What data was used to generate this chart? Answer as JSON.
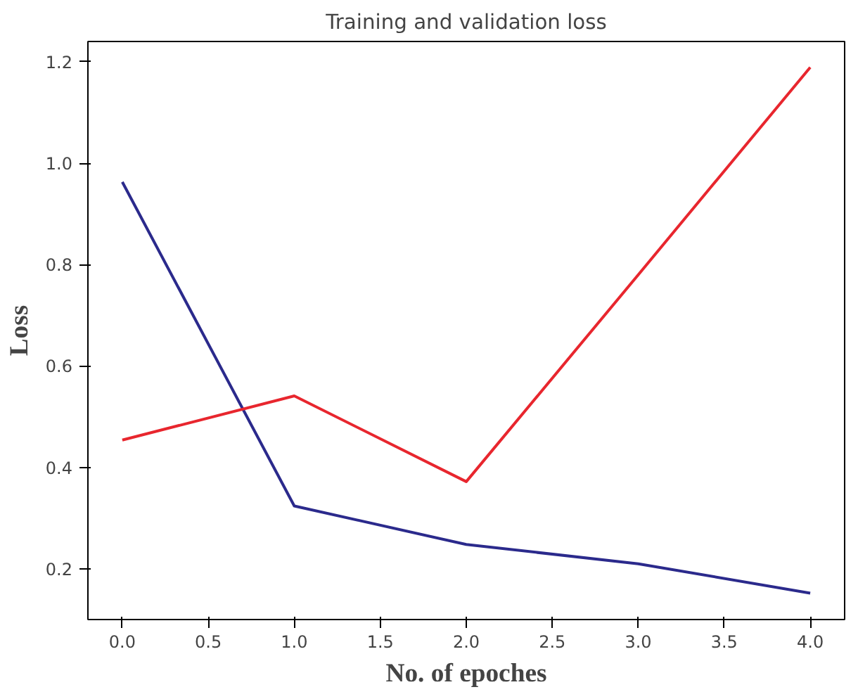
{
  "chart_data": {
    "type": "line",
    "title": "Training and validation loss",
    "xlabel": "No. of epoches",
    "ylabel": "Loss",
    "x": [
      0,
      1,
      2,
      3,
      4
    ],
    "series": [
      {
        "color": "#2b2a8c",
        "values": [
          0.963,
          0.324,
          0.248,
          0.21,
          0.152
        ]
      },
      {
        "color": "#e8262e",
        "values": [
          0.454,
          0.541,
          0.372,
          0.78,
          1.189
        ]
      }
    ],
    "xlim": [
      -0.2,
      4.2
    ],
    "ylim": [
      0.1,
      1.24
    ],
    "xticks": [
      {
        "value": 0,
        "label": "0.0"
      },
      {
        "value": 0.5,
        "label": "0.5"
      },
      {
        "value": 1,
        "label": "1.0"
      },
      {
        "value": 1.5,
        "label": "1.5"
      },
      {
        "value": 2,
        "label": "2.0"
      },
      {
        "value": 2.5,
        "label": "2.5"
      },
      {
        "value": 3,
        "label": "3.0"
      },
      {
        "value": 3.5,
        "label": "3.5"
      },
      {
        "value": 4,
        "label": "4.0"
      }
    ],
    "yticks": [
      {
        "value": 0.2,
        "label": "0.2"
      },
      {
        "value": 0.4,
        "label": "0.4"
      },
      {
        "value": 0.6,
        "label": "0.6"
      },
      {
        "value": 0.8,
        "label": "0.8"
      },
      {
        "value": 1.0,
        "label": "1.0"
      },
      {
        "value": 1.2,
        "label": "1.2"
      }
    ],
    "grid": false,
    "marker": "none",
    "line_style": "solid"
  }
}
